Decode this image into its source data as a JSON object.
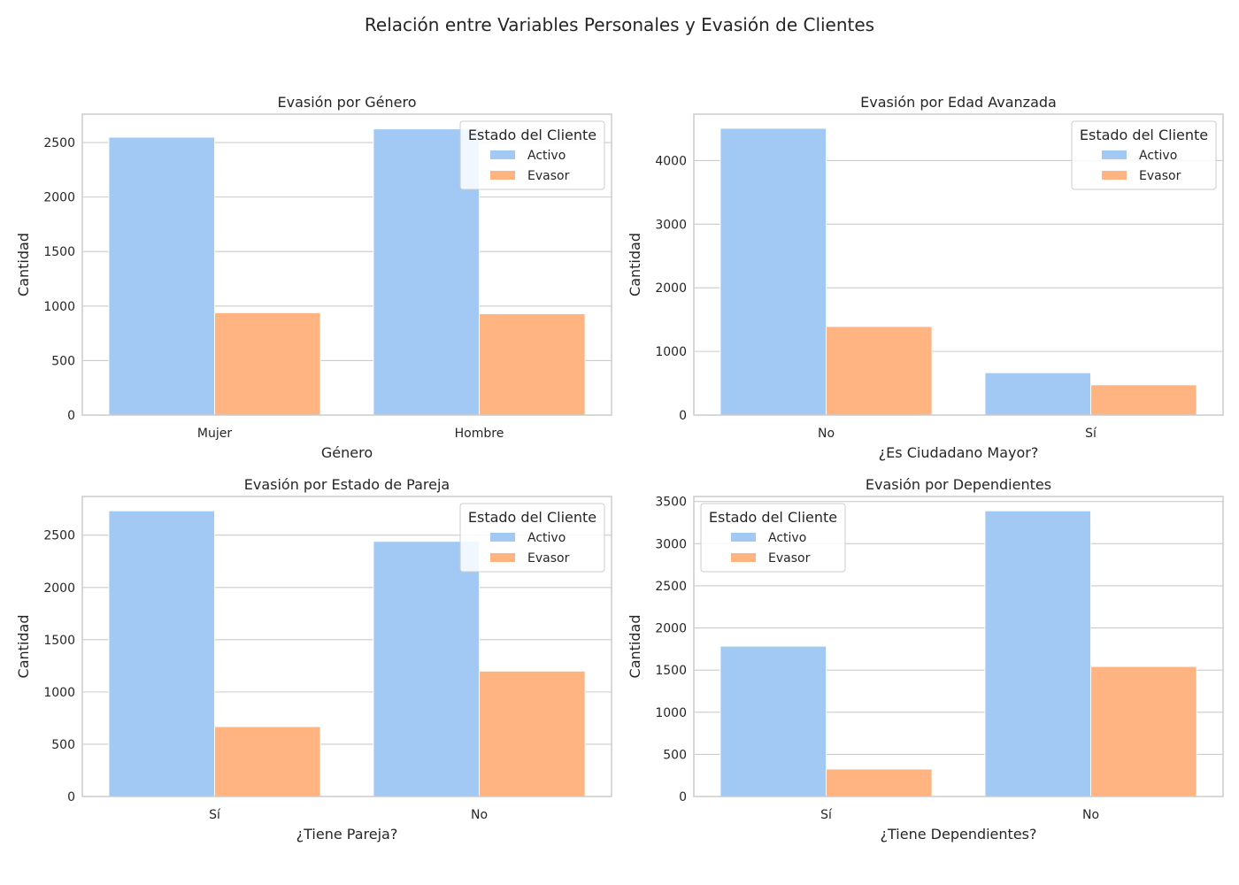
{
  "figure": {
    "suptitle": "Relación entre Variables Personales y Evasión de Clientes"
  },
  "colors": {
    "activo": "#a1c9f4",
    "evasor": "#ffb482",
    "grid": "#cccccc",
    "frame": "#cccccc"
  },
  "chart_data": [
    {
      "type": "bar",
      "title": "Evasión por Género",
      "xlabel": "Género",
      "ylabel": "Cantidad",
      "categories": [
        "Mujer",
        "Hombre"
      ],
      "series": [
        {
          "name": "Activo",
          "values": [
            2549,
            2625
          ]
        },
        {
          "name": "Evasor",
          "values": [
            939,
            930
          ]
        }
      ],
      "ylim": [
        0,
        2760
      ],
      "yticks": [
        0,
        500,
        1000,
        1500,
        2000,
        2500
      ],
      "legend": {
        "title": "Estado del Cliente",
        "position": "top-right"
      },
      "grid": true
    },
    {
      "type": "bar",
      "title": "Evasión por Edad Avanzada",
      "xlabel": "¿Es Ciudadano Mayor?",
      "ylabel": "Cantidad",
      "categories": [
        "No",
        "Sí"
      ],
      "series": [
        {
          "name": "Activo",
          "values": [
            4508,
            666
          ]
        },
        {
          "name": "Evasor",
          "values": [
            1393,
            476
          ]
        }
      ],
      "ylim": [
        0,
        4730
      ],
      "yticks": [
        0,
        1000,
        2000,
        3000,
        4000
      ],
      "legend": {
        "title": "Estado del Cliente",
        "position": "top-right"
      },
      "grid": true
    },
    {
      "type": "bar",
      "title": "Evasión por Estado de Pareja",
      "xlabel": "¿Tiene Pareja?",
      "ylabel": "Cantidad",
      "categories": [
        "Sí",
        "No"
      ],
      "series": [
        {
          "name": "Activo",
          "values": [
            2733,
            2441
          ]
        },
        {
          "name": "Evasor",
          "values": [
            669,
            1200
          ]
        }
      ],
      "ylim": [
        0,
        2870
      ],
      "yticks": [
        0,
        500,
        1000,
        1500,
        2000,
        2500
      ],
      "legend": {
        "title": "Estado del Cliente",
        "position": "top-right"
      },
      "grid": true
    },
    {
      "type": "bar",
      "title": "Evasión por Dependientes",
      "xlabel": "¿Tiene Dependientes?",
      "ylabel": "Cantidad",
      "categories": [
        "Sí",
        "No"
      ],
      "series": [
        {
          "name": "Activo",
          "values": [
            1784,
            3390
          ]
        },
        {
          "name": "Evasor",
          "values": [
            326,
            1543
          ]
        }
      ],
      "ylim": [
        0,
        3560
      ],
      "yticks": [
        0,
        500,
        1000,
        1500,
        2000,
        2500,
        3000,
        3500
      ],
      "legend": {
        "title": "Estado del Cliente",
        "position": "top-left"
      },
      "grid": true
    }
  ]
}
